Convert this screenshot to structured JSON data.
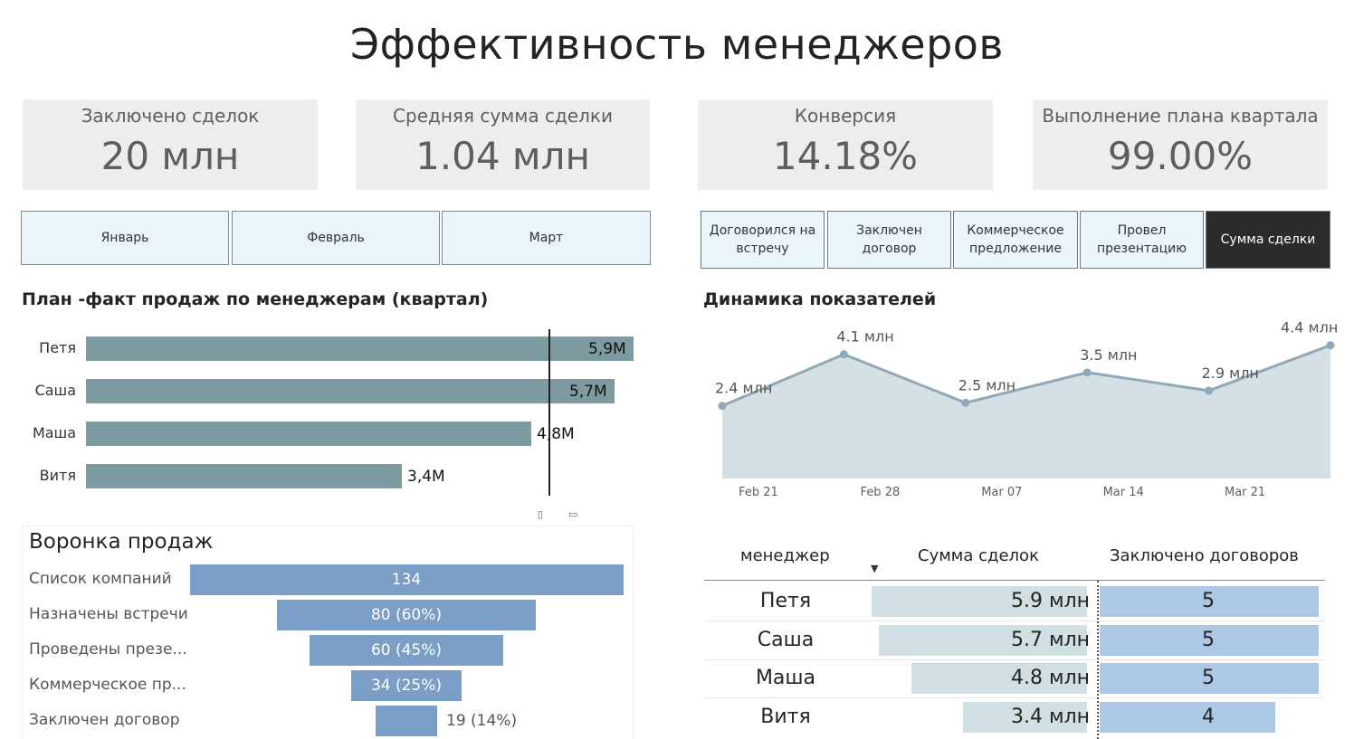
{
  "page_title": "Эффективность менеджеров",
  "kpis": [
    {
      "label": "Заключено сделок",
      "value": "20 млн"
    },
    {
      "label": "Средняя сумма сделки",
      "value": "1.04 млн"
    },
    {
      "label": "Конверсия",
      "value": "14.18%"
    },
    {
      "label": "Выполнение плана квартала",
      "value": "99.00%"
    }
  ],
  "month_slicer": [
    "Январь",
    "Февраль",
    "Март"
  ],
  "metric_buttons": [
    {
      "label": "Договорился на встречу",
      "active": false
    },
    {
      "label": "Заключен договор",
      "active": false
    },
    {
      "label": "Коммерческое предложение",
      "active": false
    },
    {
      "label": "Провел презентацию",
      "active": false
    },
    {
      "label": "Сумма сделки",
      "active": true
    }
  ],
  "plan_fact": {
    "title": "План -факт продаж по менеджерам (квартал)",
    "rows": [
      {
        "name": "Петя",
        "value": 5.9,
        "label": "5,9M"
      },
      {
        "name": "Саша",
        "value": 5.7,
        "label": "5,7M"
      },
      {
        "name": "Маша",
        "value": 4.8,
        "label": "4,8M"
      },
      {
        "name": "Витя",
        "value": 3.4,
        "label": "3,4M"
      }
    ]
  },
  "funnel": {
    "title": "Воронка продаж",
    "stages": [
      {
        "name": "Список компаний",
        "value": 134,
        "label": "134"
      },
      {
        "name": "Назначены встречи",
        "value": 80,
        "label": "80 (60%)"
      },
      {
        "name": "Проведены презе...",
        "value": 60,
        "label": "60 (45%)"
      },
      {
        "name": "Коммерческое пр...",
        "value": 34,
        "label": "34 (25%)"
      },
      {
        "name": "Заключен договор",
        "value": 19,
        "label": "19 (14%)"
      }
    ]
  },
  "dynamics": {
    "title": "Динамика показателей"
  },
  "chart_data": {
    "type": "area",
    "x": [
      "Feb 21",
      "Feb 28",
      "Mar 07",
      "Mar 14",
      "Mar 21",
      ""
    ],
    "xticks": [
      "Feb 21",
      "Feb 28",
      "Mar 07",
      "Mar 14",
      "Mar 21"
    ],
    "values": [
      2.4,
      4.1,
      2.5,
      3.5,
      2.9,
      4.4
    ],
    "labels": [
      "2.4 млн",
      "4.1 млн",
      "2.5 млн",
      "3.5 млн",
      "2.9 млн",
      "4.4 млн"
    ],
    "ylim": [
      0,
      4.6
    ],
    "color": "#8fa9b8"
  },
  "table": {
    "headers": {
      "manager": "менеджер",
      "sum": "Сумма сделок",
      "contracts": "Заключено договоров"
    },
    "rows": [
      {
        "name": "Петя",
        "sum": 5.9,
        "sum_label": "5.9 млн",
        "contracts": 5,
        "contracts_label": "5"
      },
      {
        "name": "Саша",
        "sum": 5.7,
        "sum_label": "5.7 млн",
        "contracts": 5,
        "contracts_label": "5"
      },
      {
        "name": "Маша",
        "sum": 4.8,
        "sum_label": "4.8 млн",
        "contracts": 5,
        "contracts_label": "5"
      },
      {
        "name": "Витя",
        "sum": 3.4,
        "sum_label": "3.4 млн",
        "contracts": 4,
        "contracts_label": "4"
      }
    ]
  },
  "colors": {
    "kpi_bg": "#eceded",
    "bar": "#7d9ba0",
    "funnel": "#7b9ec6",
    "active_button": "#2b2b2b"
  }
}
